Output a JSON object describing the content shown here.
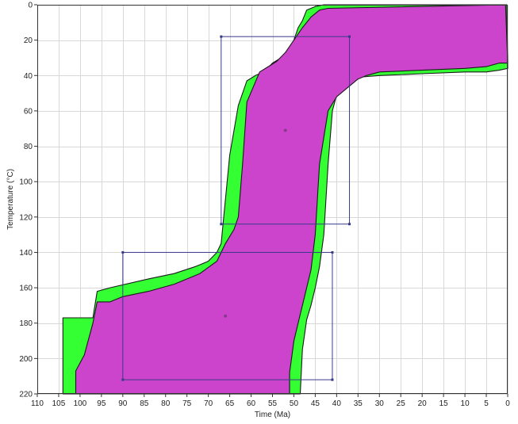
{
  "chart_data": {
    "type": "area",
    "xlabel": "Time (Ma)",
    "ylabel": "Temperature (°C)",
    "xlim": [
      110,
      0
    ],
    "ylim": [
      0,
      220
    ],
    "x_reversed": true,
    "y_inverted": true,
    "grid": true,
    "x_ticks": [
      110,
      105,
      100,
      95,
      90,
      85,
      80,
      75,
      70,
      65,
      60,
      55,
      50,
      45,
      40,
      35,
      30,
      25,
      20,
      15,
      10,
      5,
      0
    ],
    "y_ticks": [
      0,
      20,
      40,
      60,
      80,
      100,
      120,
      140,
      160,
      180,
      200,
      220
    ],
    "colors": {
      "outer_envelope": "#33ff33",
      "inner_envelope": "#cc44cc",
      "constraint_box": "#3a3a8a",
      "background": "#ffffff",
      "grid": "#d8d8d8"
    },
    "series": [
      {
        "role": "outer_envelope",
        "left_edge": [
          [
            0.2,
            0
          ],
          [
            43,
            0
          ],
          [
            45,
            1
          ],
          [
            47,
            3
          ],
          [
            48,
            9
          ],
          [
            49,
            13
          ],
          [
            50,
            20
          ],
          [
            51,
            25
          ],
          [
            53,
            30
          ],
          [
            55,
            33
          ],
          [
            57,
            38
          ],
          [
            59,
            40
          ],
          [
            61,
            43
          ],
          [
            63,
            57
          ],
          [
            65,
            85
          ],
          [
            66,
            110
          ],
          [
            67,
            135
          ],
          [
            68,
            140
          ],
          [
            70,
            145
          ],
          [
            72,
            147
          ],
          [
            73,
            148
          ],
          [
            78,
            152
          ],
          [
            84,
            155
          ],
          [
            93,
            160
          ],
          [
            96,
            162
          ],
          [
            97,
            177
          ],
          [
            102,
            177
          ],
          [
            104,
            177
          ],
          [
            104,
            220
          ]
        ],
        "right_edge": [
          [
            0,
            36
          ],
          [
            2,
            37
          ],
          [
            5,
            38
          ],
          [
            10,
            38
          ],
          [
            20,
            39
          ],
          [
            30,
            40
          ],
          [
            35,
            41
          ],
          [
            37,
            43
          ],
          [
            39,
            47
          ],
          [
            40,
            51
          ],
          [
            41,
            60
          ],
          [
            42,
            90
          ],
          [
            43,
            130
          ],
          [
            44,
            148
          ],
          [
            45,
            160
          ],
          [
            46,
            170
          ],
          [
            47,
            178
          ],
          [
            48,
            195
          ],
          [
            48.5,
            220
          ]
        ]
      },
      {
        "role": "inner_envelope",
        "left_edge": [
          [
            0.5,
            0
          ],
          [
            42,
            2
          ],
          [
            44,
            3
          ],
          [
            46,
            7
          ],
          [
            48,
            13
          ],
          [
            50,
            20
          ],
          [
            52,
            27
          ],
          [
            54,
            32
          ],
          [
            56,
            35
          ],
          [
            58,
            38
          ],
          [
            61,
            55
          ],
          [
            62,
            90
          ],
          [
            63,
            120
          ],
          [
            64,
            127
          ],
          [
            66,
            135
          ],
          [
            68,
            145
          ],
          [
            72,
            152
          ],
          [
            78,
            158
          ],
          [
            84,
            162
          ],
          [
            90,
            165
          ],
          [
            93,
            168
          ],
          [
            96,
            168
          ],
          [
            97,
            180
          ],
          [
            99,
            198
          ],
          [
            101,
            207
          ],
          [
            101,
            220
          ]
        ],
        "right_edge": [
          [
            0,
            33
          ],
          [
            2,
            33
          ],
          [
            5,
            35
          ],
          [
            10,
            36
          ],
          [
            20,
            37
          ],
          [
            30,
            38
          ],
          [
            33,
            40
          ],
          [
            35,
            42
          ],
          [
            37,
            46
          ],
          [
            40,
            52
          ],
          [
            42,
            60
          ],
          [
            44,
            90
          ],
          [
            45,
            130
          ],
          [
            46,
            150
          ],
          [
            48,
            170
          ],
          [
            50,
            190
          ],
          [
            51,
            208
          ],
          [
            51,
            220
          ]
        ]
      }
    ],
    "constraint_boxes": [
      {
        "x_range": [
          37,
          67
        ],
        "y_range": [
          18,
          124
        ],
        "center": [
          52,
          71
        ]
      },
      {
        "x_range": [
          41,
          90
        ],
        "y_range": [
          140,
          212
        ],
        "center": [
          66,
          176
        ]
      }
    ]
  }
}
